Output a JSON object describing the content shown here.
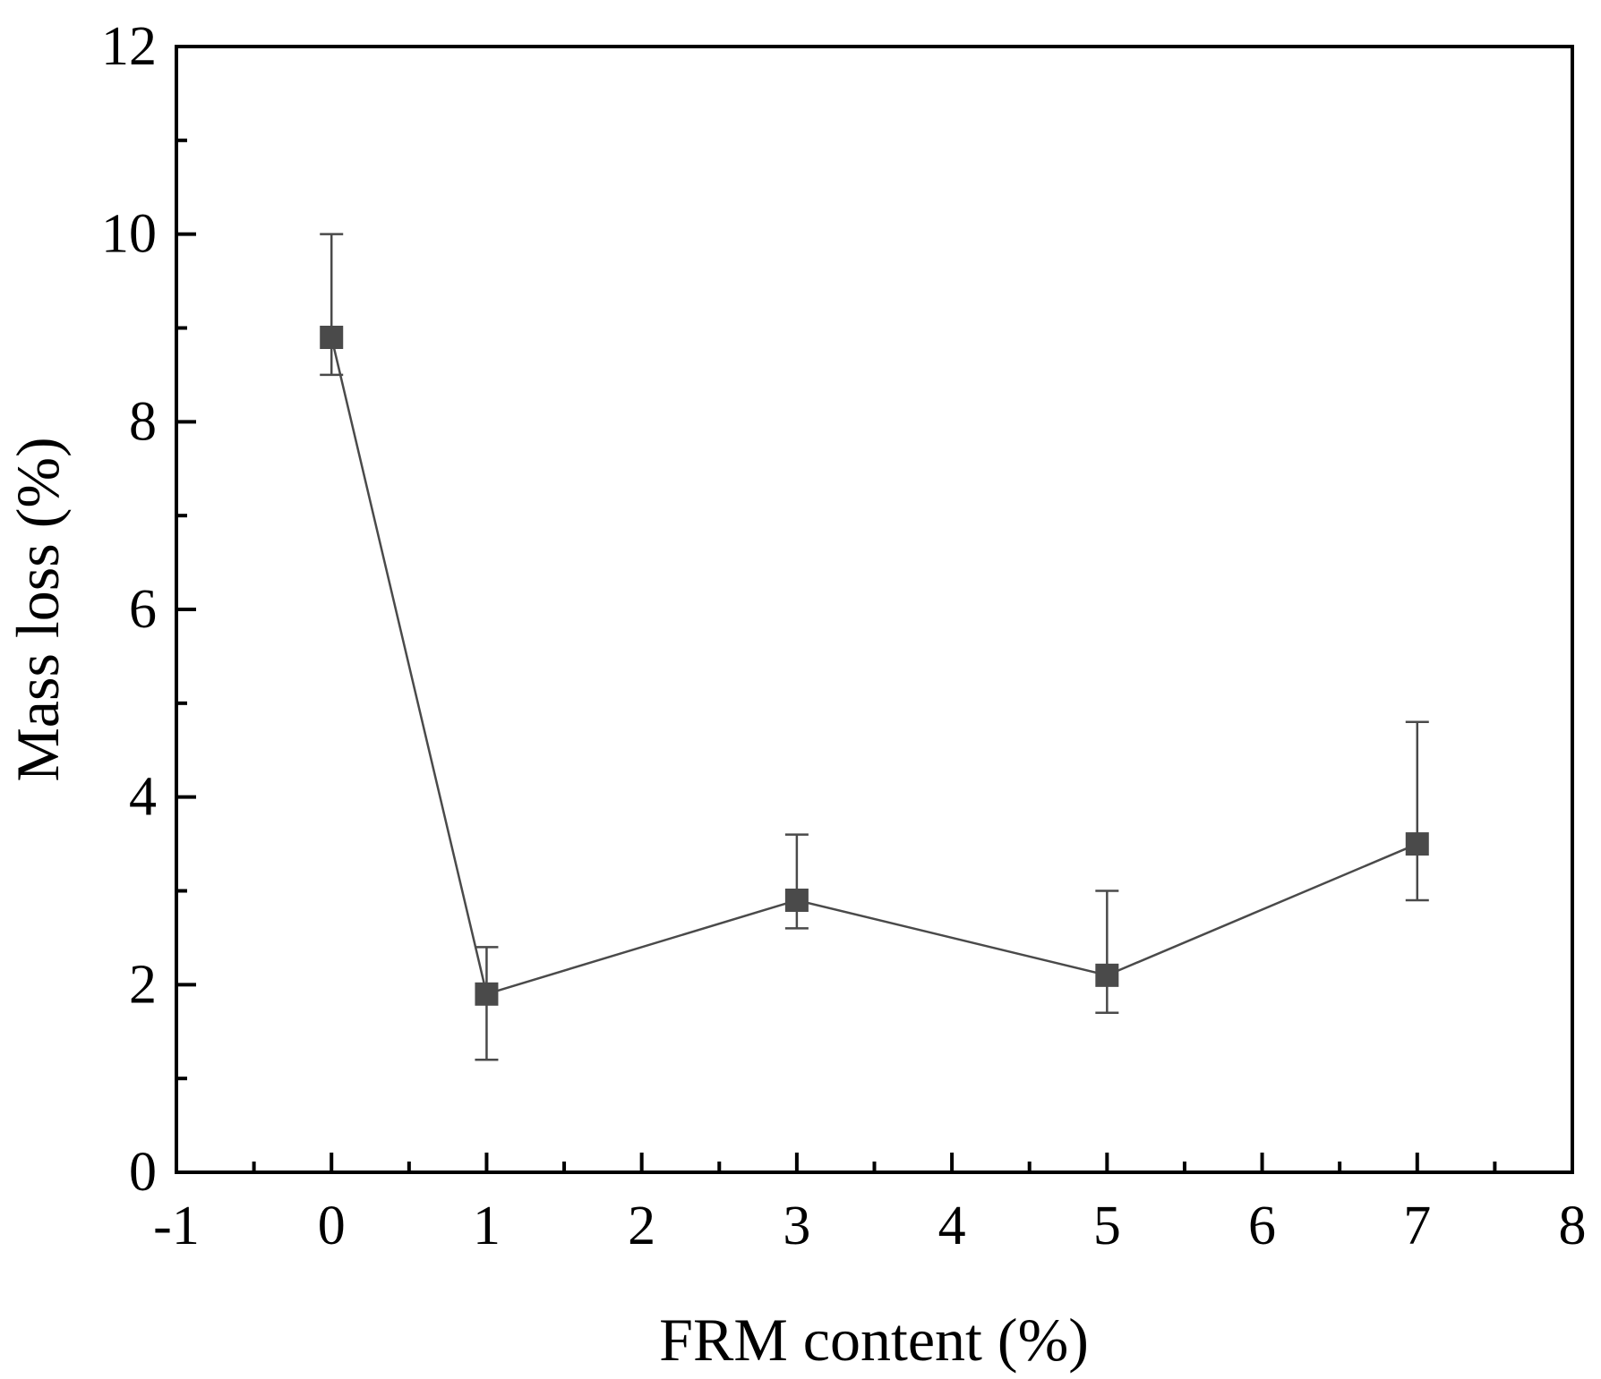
{
  "chart_data": {
    "type": "line",
    "title": "",
    "xlabel": "FRM content (%)",
    "ylabel": "Mass loss (%)",
    "xlim": [
      -1,
      8
    ],
    "ylim": [
      0,
      12
    ],
    "x_ticks": [
      "-1",
      "0",
      "1",
      "2",
      "3",
      "4",
      "5",
      "6",
      "7",
      "8"
    ],
    "y_ticks": [
      "0",
      "2",
      "4",
      "6",
      "8",
      "10",
      "12"
    ],
    "grid": false,
    "legend": "none",
    "series": [
      {
        "color": "#4a4a4a",
        "marker": "square",
        "points": [
          {
            "x": 0,
            "y": 8.9,
            "err_low": 8.5,
            "err_high": 10.0
          },
          {
            "x": 1,
            "y": 1.9,
            "err_low": 1.2,
            "err_high": 2.4
          },
          {
            "x": 3,
            "y": 2.9,
            "err_low": 2.6,
            "err_high": 3.6
          },
          {
            "x": 5,
            "y": 2.1,
            "err_low": 1.7,
            "err_high": 3.0
          },
          {
            "x": 7,
            "y": 3.5,
            "err_low": 2.9,
            "err_high": 4.8
          }
        ]
      }
    ]
  }
}
